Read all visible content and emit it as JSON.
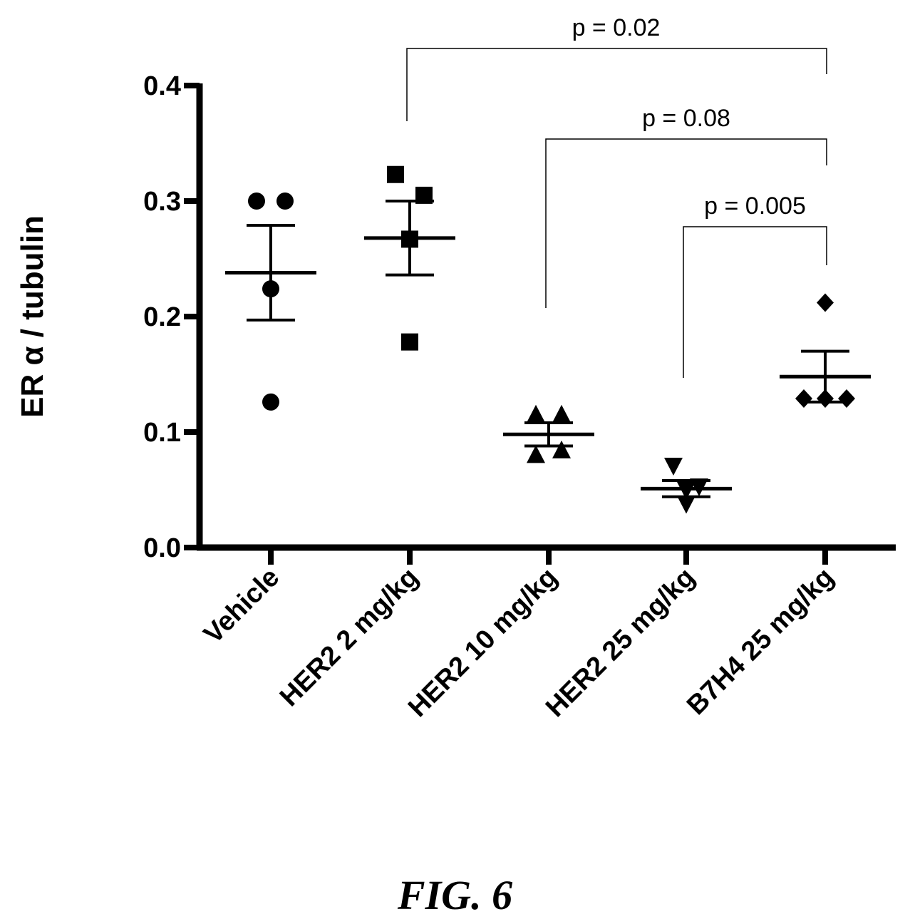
{
  "chart_data": {
    "type": "scatter",
    "title": "",
    "xlabel": "",
    "ylabel": "ER α / tubulin",
    "ylim": [
      0.0,
      0.4
    ],
    "yticks": [
      0.0,
      0.1,
      0.2,
      0.3,
      0.4
    ],
    "ytick_labels": [
      "0.0",
      "0.1",
      "0.2",
      "0.3",
      "0.4"
    ],
    "grid": false,
    "categories": [
      "Vehicle",
      "HER2 2 mg/kg",
      "HER2 10 mg/kg",
      "HER2 25 mg/kg",
      "B7H4 25 mg/kg"
    ],
    "groups": [
      {
        "category": "Vehicle",
        "marker": "circle",
        "points": [
          0.3,
          0.3,
          0.224,
          0.126
        ],
        "mean": 0.238,
        "sem": [
          0.197,
          0.279
        ]
      },
      {
        "category": "HER2 2 mg/kg",
        "marker": "square",
        "points": [
          0.323,
          0.305,
          0.267,
          0.178
        ],
        "mean": 0.268,
        "sem": [
          0.236,
          0.3
        ]
      },
      {
        "category": "HER2 10 mg/kg",
        "marker": "triangle-up",
        "points": [
          0.115,
          0.115,
          0.08,
          0.084
        ],
        "mean": 0.098,
        "sem": [
          0.088,
          0.108
        ]
      },
      {
        "category": "HER2 25 mg/kg",
        "marker": "triangle-down",
        "points": [
          0.071,
          0.053,
          0.05,
          0.038
        ],
        "mean": 0.051,
        "sem": [
          0.044,
          0.058
        ]
      },
      {
        "category": "B7H4 25 mg/kg",
        "marker": "diamond",
        "points": [
          0.212,
          0.129,
          0.129,
          0.129
        ],
        "mean": 0.148,
        "sem": [
          0.126,
          0.17
        ]
      }
    ],
    "comparisons": [
      {
        "from": "HER2 2 mg/kg",
        "to": "B7H4 25 mg/kg",
        "label": "p = 0.02"
      },
      {
        "from": "HER2 10 mg/kg",
        "to": "B7H4 25 mg/kg",
        "label": "p = 0.08"
      },
      {
        "from": "HER2 25 mg/kg",
        "to": "B7H4 25 mg/kg",
        "label": "p = 0.005"
      }
    ]
  },
  "caption": "FIG. 6"
}
